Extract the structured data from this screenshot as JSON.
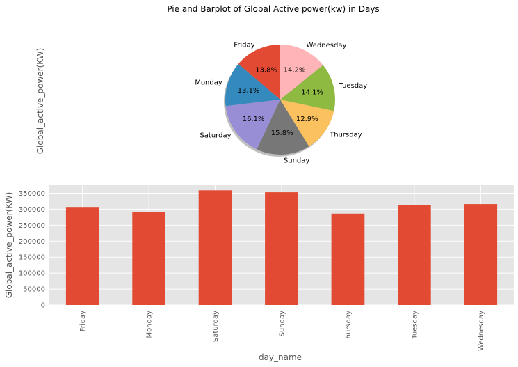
{
  "title": "Pie and Barplot of Global Active power(kw) in Days",
  "chart_data": [
    {
      "type": "pie",
      "ylabel": "Global_active_power(KW)",
      "labels": [
        "Friday",
        "Monday",
        "Saturday",
        "Sunday",
        "Thursday",
        "Tuesday",
        "Wednesday"
      ],
      "percent_labels": [
        "13.8%",
        "13.1%",
        "16.1%",
        "15.8%",
        "12.9%",
        "14.1%",
        "14.2%"
      ],
      "values": [
        13.8,
        13.1,
        16.1,
        15.8,
        12.9,
        14.1,
        14.2
      ],
      "colors": [
        "#E24A33",
        "#348ABD",
        "#988ED5",
        "#777777",
        "#FBC15E",
        "#8EBA42",
        "#FFB5B8"
      ],
      "start_angle_deg": 90,
      "direction": "counterclockwise",
      "shadow": true
    },
    {
      "type": "bar",
      "categories": [
        "Friday",
        "Monday",
        "Saturday",
        "Sunday",
        "Thursday",
        "Tuesday",
        "Wednesday"
      ],
      "values": [
        307000,
        292000,
        359000,
        353000,
        286000,
        314000,
        316000
      ],
      "xlabel": "day_name",
      "ylabel": "Global_active_power(KW)",
      "ylim": [
        0,
        375000
      ],
      "yticks": [
        0,
        50000,
        100000,
        150000,
        200000,
        250000,
        300000,
        350000
      ],
      "bar_color": "#E24A33",
      "background": "#E5E5E5",
      "grid": true
    }
  ]
}
